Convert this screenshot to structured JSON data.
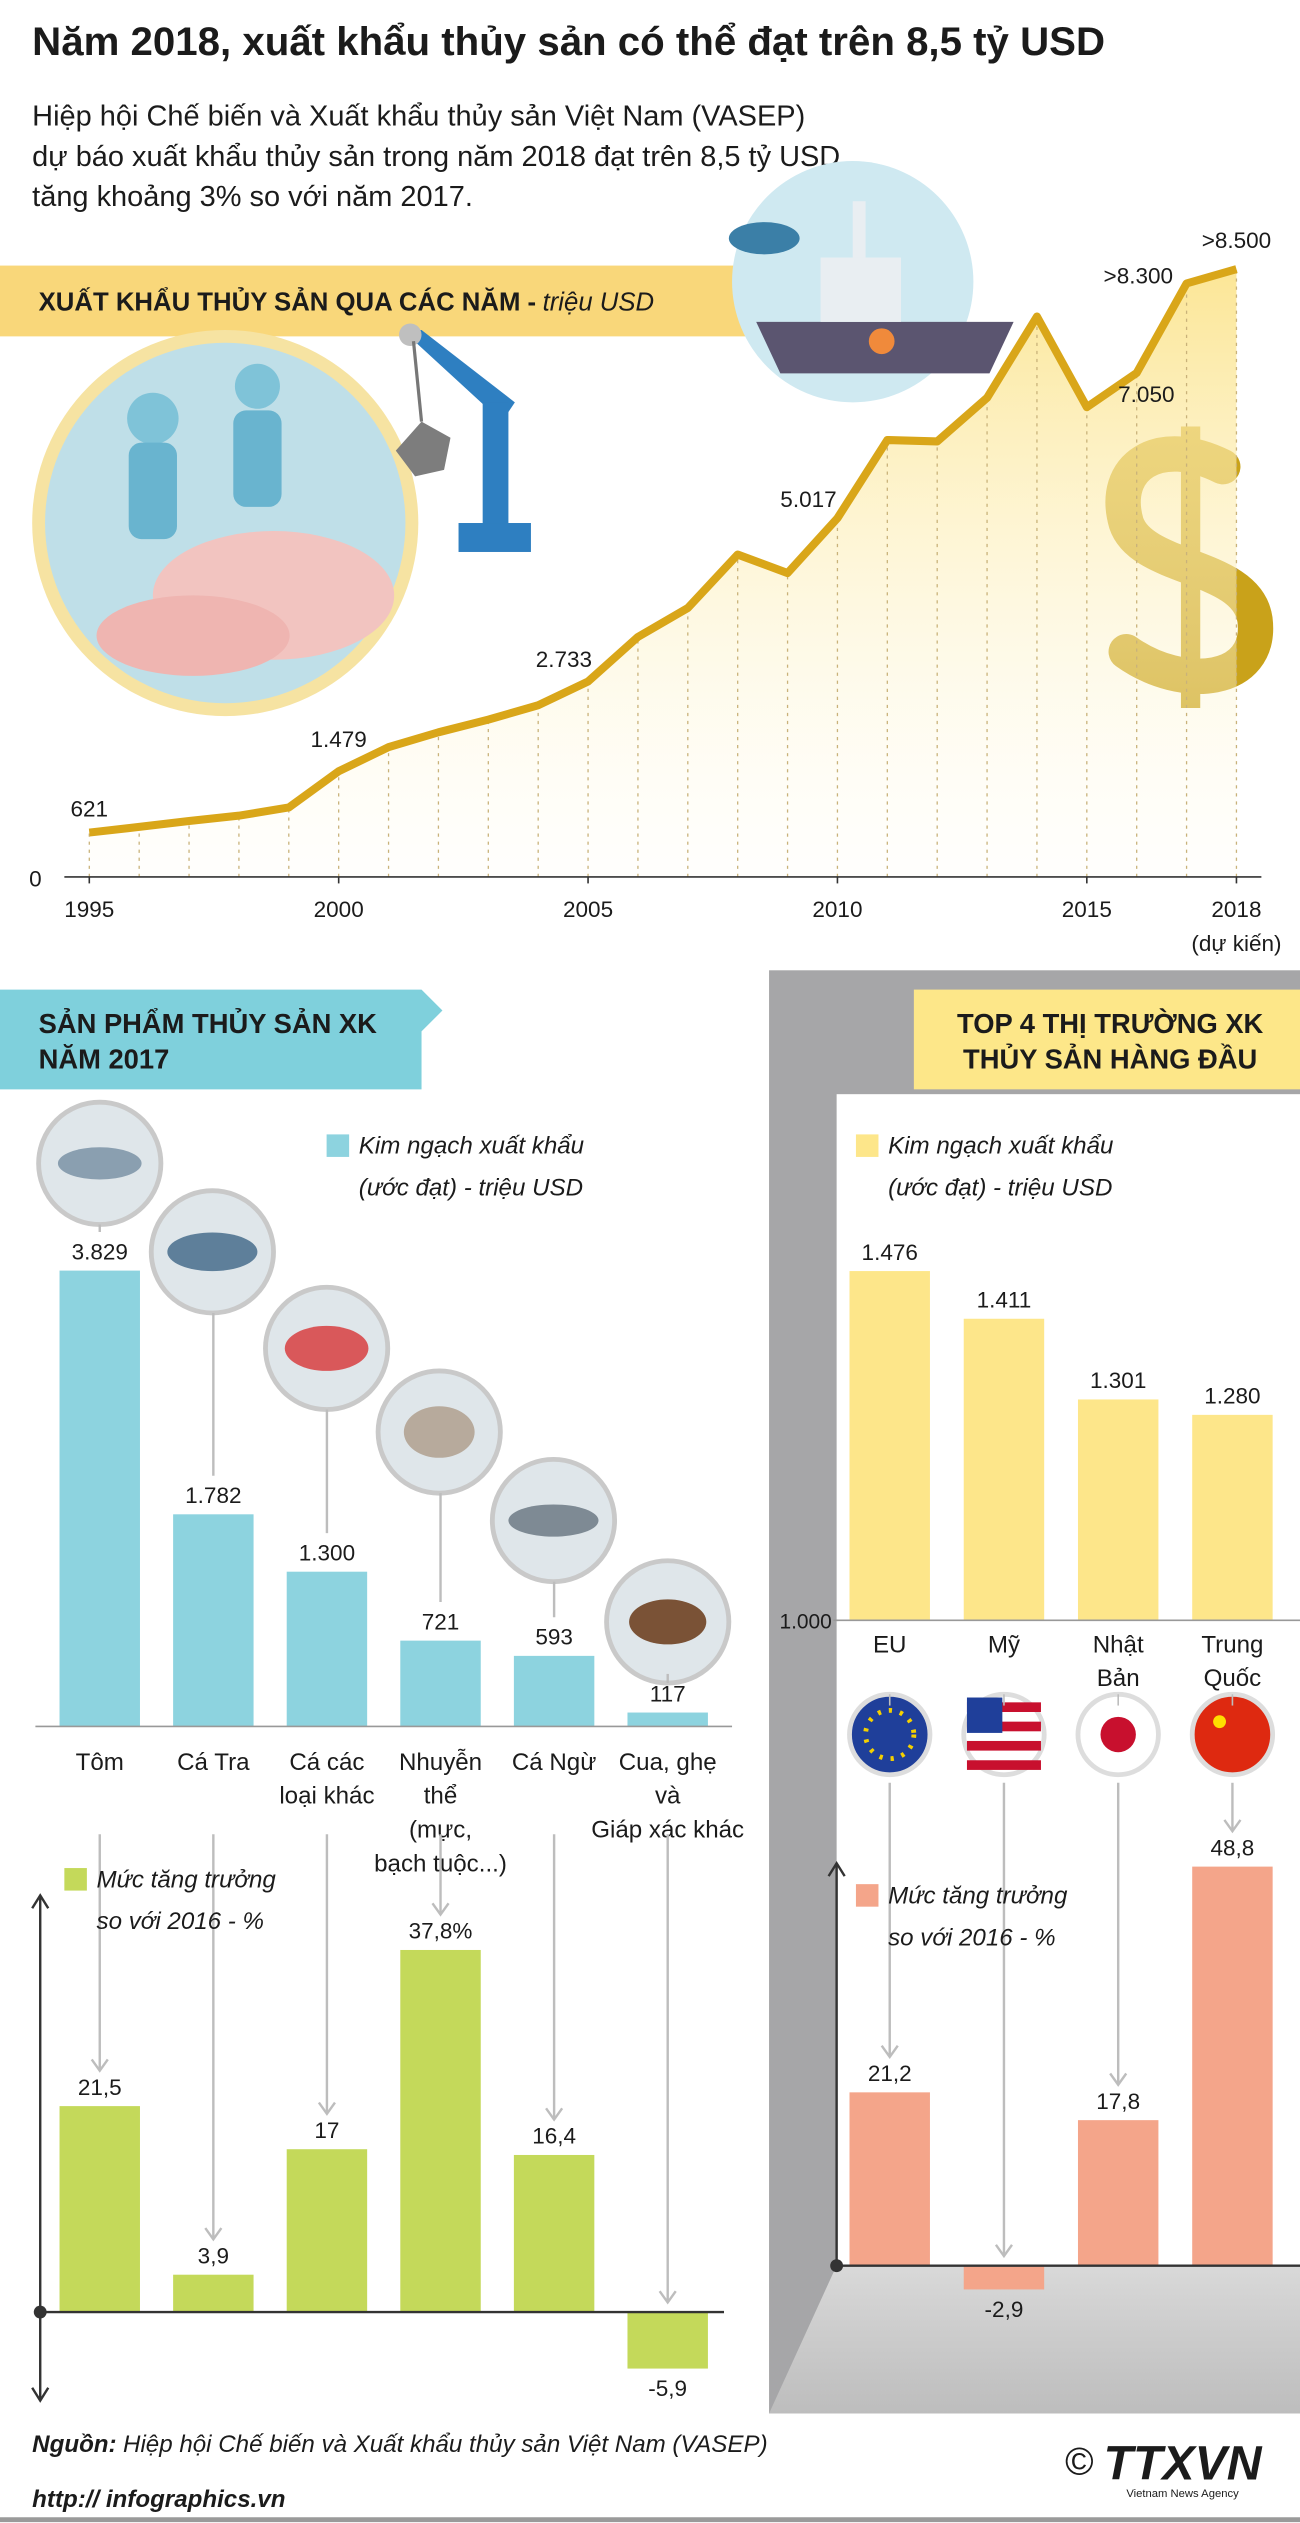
{
  "header": {
    "title": "Năm 2018, xuất khẩu thủy sản có thể đạt trên 8,5 tỷ USD",
    "subtitle": "Hiệp hội Chế biến và Xuất khẩu thủy sản Việt Nam (VASEP)\ndự báo xuất khẩu thủy sản trong năm 2018 đạt trên 8,5 tỷ USD,\ntăng khoảng 3% so với năm 2017."
  },
  "chart_data": [
    {
      "type": "line",
      "title": "XUẤT KHẨU THỦY SẢN QUA CÁC NĂM -",
      "y_unit": "triệu USD",
      "x": [
        1995,
        1996,
        1997,
        1998,
        1999,
        2000,
        2001,
        2002,
        2003,
        2004,
        2005,
        2006,
        2007,
        2008,
        2009,
        2010,
        2011,
        2012,
        2013,
        2014,
        2015,
        2016,
        2017,
        2018
      ],
      "values": [
        621,
        700,
        782,
        858,
        971,
        1479,
        1816,
        2022,
        2200,
        2400,
        2733,
        3358,
        3763,
        4510,
        4251,
        5017,
        6112,
        6090,
        6700,
        7836,
        6570,
        7050,
        8300,
        8500
      ],
      "value_labels": [
        "621",
        null,
        null,
        null,
        null,
        "1.479",
        null,
        null,
        null,
        null,
        "2.733",
        null,
        null,
        null,
        null,
        "5.017",
        null,
        null,
        null,
        null,
        null,
        "7.050",
        ">8.300",
        ">8.500"
      ],
      "color": "#d9a619",
      "xlim": [
        1994.5,
        2018.5
      ],
      "ylim": [
        0,
        9000
      ],
      "xticks": [
        1995,
        2000,
        2005,
        2010,
        2015,
        2018
      ],
      "yticks": [
        0
      ],
      "x_annotation": "(dự kiến)"
    },
    {
      "type": "bar",
      "title": "SẢN PHẨM THỦY SẢN XK\nNĂM 2017",
      "categories": [
        "Tôm",
        "Cá Tra",
        "Cá các\nloại khác",
        "Nhuyễn\nthể\n(mực,\nbạch tuộc...)",
        "Cá Ngừ",
        "Cua, ghẹ\nvà\nGiáp xác khác"
      ],
      "series": [
        {
          "name": "Kim ngạch xuất khẩu\n(ước đạt) - triệu USD",
          "color": "#8dd3df",
          "values": [
            3829,
            1782,
            1300,
            721,
            593,
            117
          ],
          "value_labels": [
            "3.829",
            "1.782",
            "1.300",
            "721",
            "593",
            "117"
          ]
        }
      ],
      "ylim": [
        0,
        4000
      ]
    },
    {
      "type": "bar",
      "series": [
        {
          "name": "Mức tăng trưởng\nso với 2016 - %",
          "color": "#c4d95a",
          "values": [
            21.5,
            3.9,
            17,
            37.8,
            16.4,
            -5.9
          ],
          "value_labels": [
            "21,5",
            "3,9",
            "17",
            "37,8%",
            "16,4",
            "-5,9"
          ]
        }
      ],
      "ylim": [
        -10,
        44
      ]
    },
    {
      "type": "bar",
      "title": "TOP 4 THỊ TRƯỜNG XK\nTHỦY SẢN HÀNG ĐẦU",
      "categories": [
        "EU",
        "Mỹ",
        "Nhật\nBản",
        "Trung\nQuốc"
      ],
      "series": [
        {
          "name": "Kim ngạch xuất khẩu\n(ước đạt) - triệu USD",
          "color": "#fde68a",
          "values": [
            1476,
            1411,
            1301,
            1280
          ],
          "value_labels": [
            "1.476",
            "1.411",
            "1.301",
            "1.280"
          ]
        }
      ],
      "ylim": [
        1000,
        1500
      ],
      "yticks": [
        {
          "value": 1000,
          "label": "1.000"
        }
      ]
    },
    {
      "type": "bar",
      "series": [
        {
          "name": "Mức tăng trưởng\nso với 2016 - %",
          "color": "#f4a58a",
          "values": [
            21.2,
            -2.9,
            17.8,
            48.8
          ],
          "value_labels": [
            "21,2",
            "-2,9",
            "17,8",
            "48,8"
          ]
        }
      ],
      "ylim": [
        -10,
        50
      ]
    }
  ],
  "footer": {
    "source_label": "Nguồn:",
    "source": "Hiệp hội Chế biến và Xuất khẩu thủy sản Việt Nam (VASEP)",
    "url": "http:// infographics.vn",
    "copyright": "©",
    "logo": "TTXVN",
    "logo_sub": "Vietnam News Agency"
  }
}
